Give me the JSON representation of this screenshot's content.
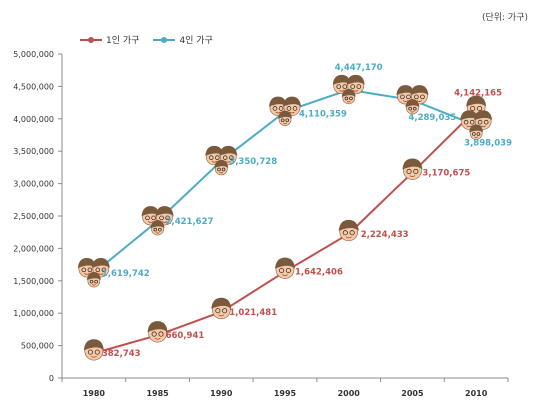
{
  "unit_note": "(단위: 가구)",
  "chart_data": {
    "type": "line",
    "categories": [
      "1980",
      "1985",
      "1990",
      "1995",
      "2000",
      "2005",
      "2010"
    ],
    "series": [
      {
        "name": "1인 가구",
        "color": "#c0504d",
        "values": [
          382743,
          660941,
          1021481,
          1642406,
          2224433,
          3170675,
          4142165
        ],
        "labels": [
          "382,743",
          "660,941",
          "1,021,481",
          "1,642,406",
          "2,224,433",
          "3,170,675",
          "4,142,165"
        ],
        "icon": "single-person-face"
      },
      {
        "name": "4인 가구",
        "color": "#4bacc6",
        "values": [
          1619742,
          2421627,
          3350728,
          4110359,
          4447170,
          4289035,
          3898039
        ],
        "labels": [
          "1,619,742",
          "2,421,627",
          "3,350,728",
          "4,110,359",
          "4,447,170",
          "4,289,035",
          "3,898,039"
        ],
        "icon": "family-faces"
      }
    ],
    "ylim": [
      0,
      5000000
    ],
    "yticks": [
      0,
      500000,
      1000000,
      1500000,
      2000000,
      2500000,
      3000000,
      3500000,
      4000000,
      4500000,
      5000000
    ],
    "ytick_labels": [
      "0",
      "500,000",
      "1,000,000",
      "1,500,000",
      "2,000,000",
      "2,500,000",
      "3,000,000",
      "3,500,000",
      "4,000,000",
      "4,500,000",
      "5,000,000"
    ],
    "grid": false,
    "legend_position": "top-left"
  }
}
